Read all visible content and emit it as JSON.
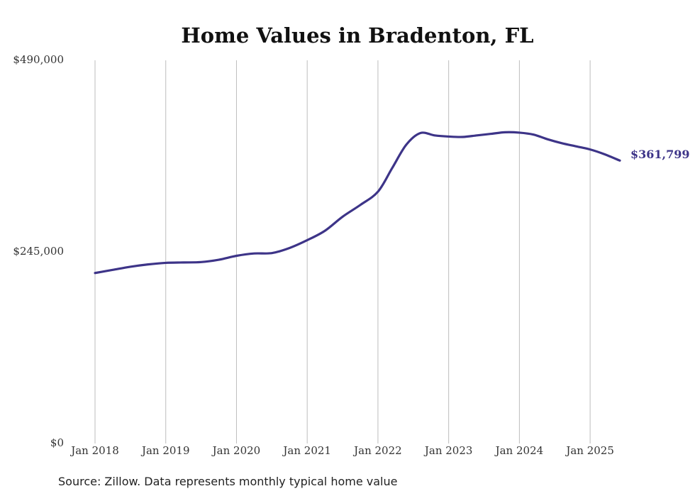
{
  "chart_data": {
    "type": "line",
    "title": "Home Values in Bradenton, FL",
    "source": "Source: Zillow. Data represents monthly typical home value",
    "xlabel": "",
    "ylabel": "",
    "ylim": [
      0,
      490000
    ],
    "y_ticks": [
      {
        "value": 0,
        "label": "$0"
      },
      {
        "value": 245000,
        "label": "$245,000"
      },
      {
        "value": 490000,
        "label": "$490,000"
      }
    ],
    "x_ticks": [
      {
        "value": 2018.0,
        "label": "Jan 2018"
      },
      {
        "value": 2019.0,
        "label": "Jan 2019"
      },
      {
        "value": 2020.0,
        "label": "Jan 2020"
      },
      {
        "value": 2021.0,
        "label": "Jan 2021"
      },
      {
        "value": 2022.0,
        "label": "Jan 2022"
      },
      {
        "value": 2023.0,
        "label": "Jan 2023"
      },
      {
        "value": 2024.0,
        "label": "Jan 2024"
      },
      {
        "value": 2025.0,
        "label": "Jan 2025"
      }
    ],
    "xlim": [
      2018.0,
      2025.42
    ],
    "grid": "vertical",
    "line_color": "#3d3488",
    "end_label": "$361,799",
    "series": [
      {
        "x": [
          2018.0,
          2018.25,
          2018.5,
          2018.75,
          2019.0,
          2019.25,
          2019.5,
          2019.75,
          2020.0,
          2020.25,
          2020.5,
          2020.75,
          2021.0,
          2021.25,
          2021.5,
          2021.75,
          2022.0,
          2022.2,
          2022.4,
          2022.6,
          2022.8,
          2023.0,
          2023.2,
          2023.4,
          2023.6,
          2023.8,
          2024.0,
          2024.2,
          2024.4,
          2024.6,
          2024.8,
          2025.0,
          2025.2,
          2025.42
        ],
        "y": [
          218000,
          222000,
          226000,
          229000,
          231000,
          231500,
          232000,
          235000,
          240000,
          243000,
          243500,
          250000,
          260000,
          272000,
          290000,
          305000,
          322000,
          352000,
          382000,
          397000,
          394000,
          392500,
          392000,
          394000,
          396000,
          398000,
          397500,
          395000,
          389000,
          384000,
          380000,
          376000,
          370000,
          361799
        ]
      }
    ]
  }
}
